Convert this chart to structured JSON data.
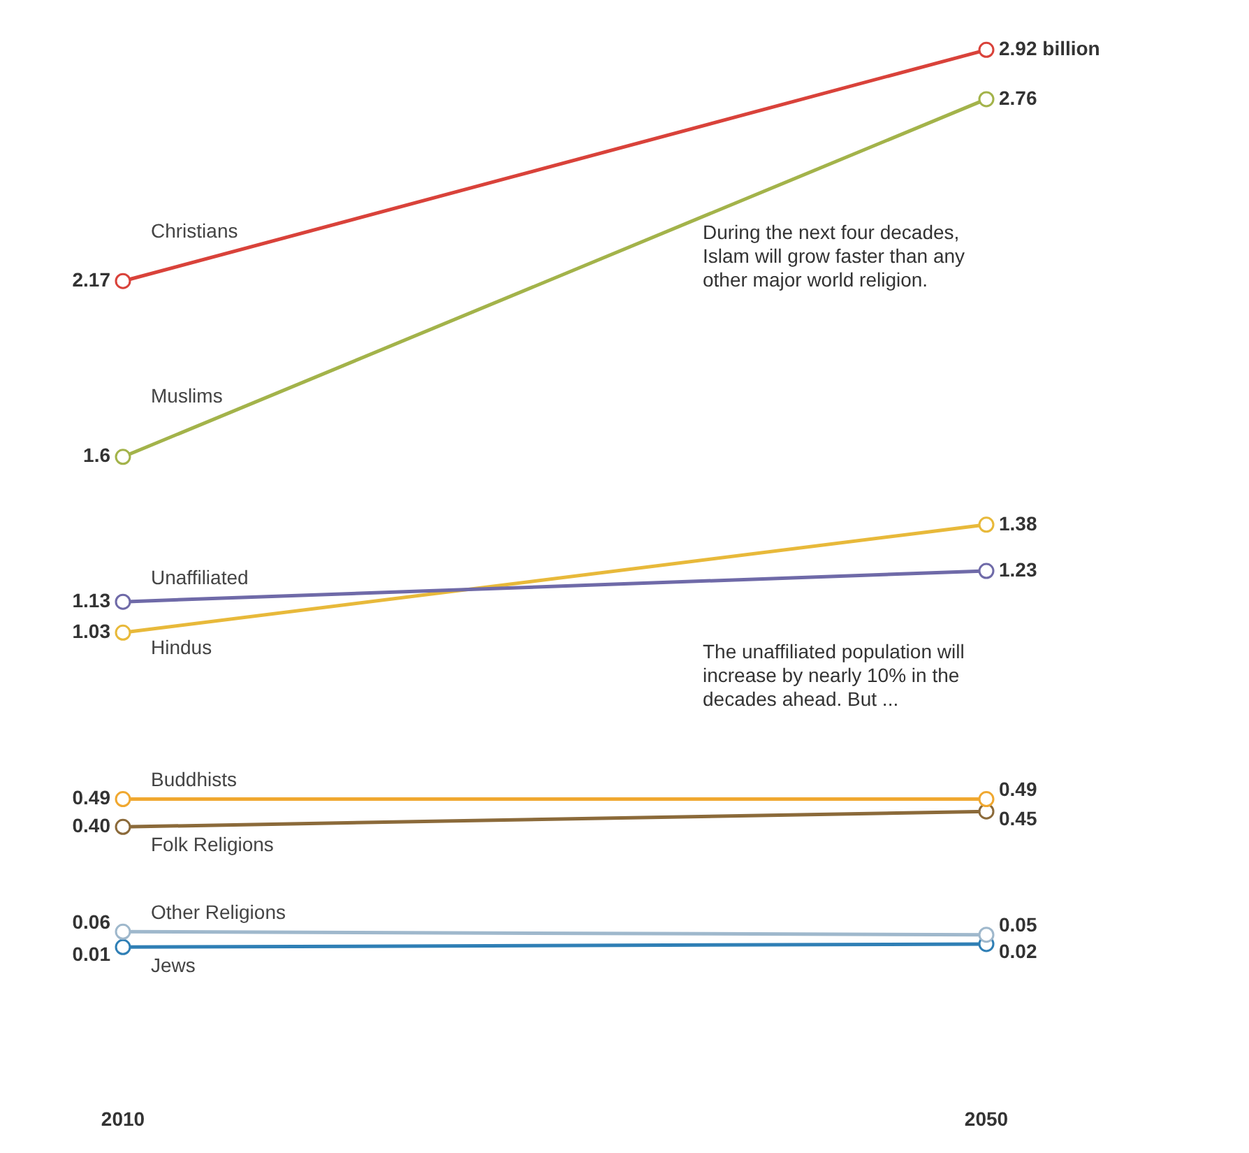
{
  "chart_data": {
    "type": "line",
    "categories": [
      "2010",
      "2050"
    ],
    "tick_labels": "x",
    "grid": false,
    "legend": false,
    "marker": "circle",
    "line_style": "solid",
    "series": [
      {
        "name": "Christians",
        "color": "#d9423a",
        "values": [
          2.17,
          2.92
        ],
        "value_labels": [
          "2.17",
          "2.92 billion"
        ]
      },
      {
        "name": "Muslims",
        "color": "#a3b34a",
        "values": [
          1.6,
          2.76
        ],
        "value_labels": [
          "1.6",
          "2.76"
        ]
      },
      {
        "name": "Unaffiliated",
        "color": "#6f6aa8",
        "values": [
          1.13,
          1.23
        ],
        "value_labels": [
          "1.13",
          "1.23"
        ]
      },
      {
        "name": "Hindus",
        "color": "#e8b93a",
        "values": [
          1.03,
          1.38
        ],
        "value_labels": [
          "1.03",
          "1.38"
        ]
      },
      {
        "name": "Buddhists",
        "color": "#f0a830",
        "values": [
          0.49,
          0.49
        ],
        "value_labels": [
          "0.49",
          "0.49"
        ]
      },
      {
        "name": "Folk Religions",
        "color": "#8b6a3a",
        "values": [
          0.4,
          0.45
        ],
        "value_labels": [
          "0.40",
          "0.45"
        ]
      },
      {
        "name": "Other Religions",
        "color": "#9fb8cc",
        "values": [
          0.06,
          0.05
        ],
        "value_labels": [
          "0.06",
          "0.05"
        ]
      },
      {
        "name": "Jews",
        "color": "#2f7fb5",
        "values": [
          0.01,
          0.02
        ],
        "value_labels": [
          "0.01",
          "0.02"
        ]
      }
    ],
    "annotations": [
      "During the next four decades, Islam will grow faster than any other major world religion.",
      "The unaffiliated population will increase by nearly 10% in the decades ahead. But ..."
    ]
  }
}
